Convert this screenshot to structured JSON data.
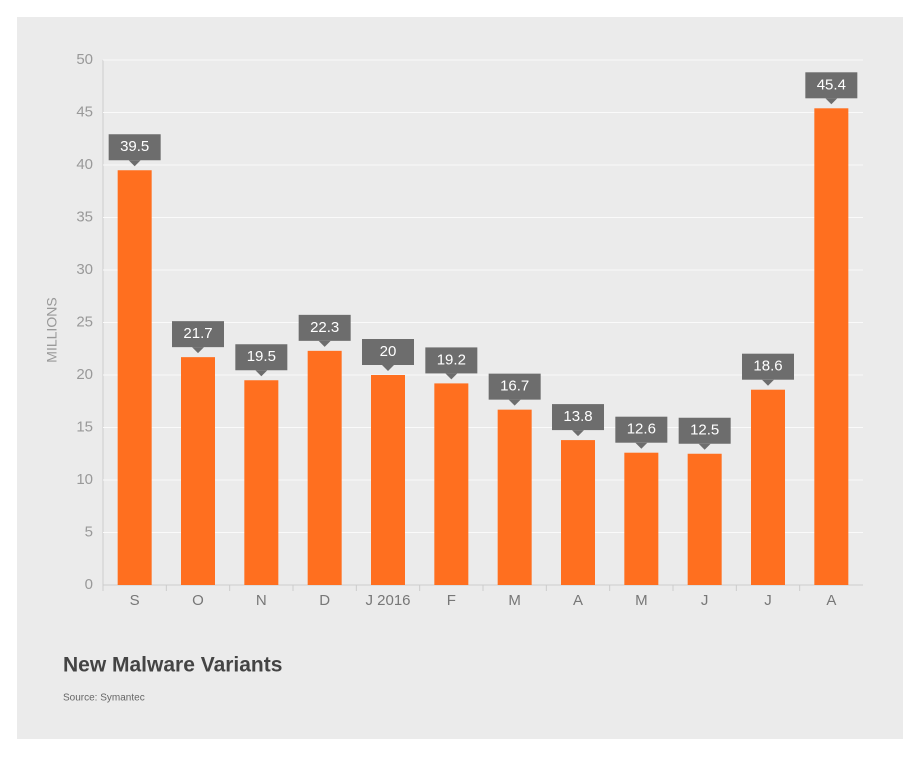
{
  "chart_data": {
    "type": "bar",
    "title": "New Malware Variants",
    "source": "Source: Symantec",
    "y_label": "MILLIONS",
    "categories": [
      "S",
      "O",
      "N",
      "D",
      "J 2016",
      "F",
      "M",
      "A",
      "M",
      "J",
      "J",
      "A"
    ],
    "values": [
      39.5,
      21.7,
      19.5,
      22.3,
      20,
      19.2,
      16.7,
      13.8,
      12.6,
      12.5,
      18.6,
      45.4
    ],
    "color": "#ff6f1f",
    "label_color": "#6d6d6d",
    "ylim": [
      0,
      50
    ],
    "yticks": [
      0,
      5,
      10,
      15,
      20,
      25,
      30,
      35,
      40,
      45,
      50
    ],
    "grid": true
  }
}
